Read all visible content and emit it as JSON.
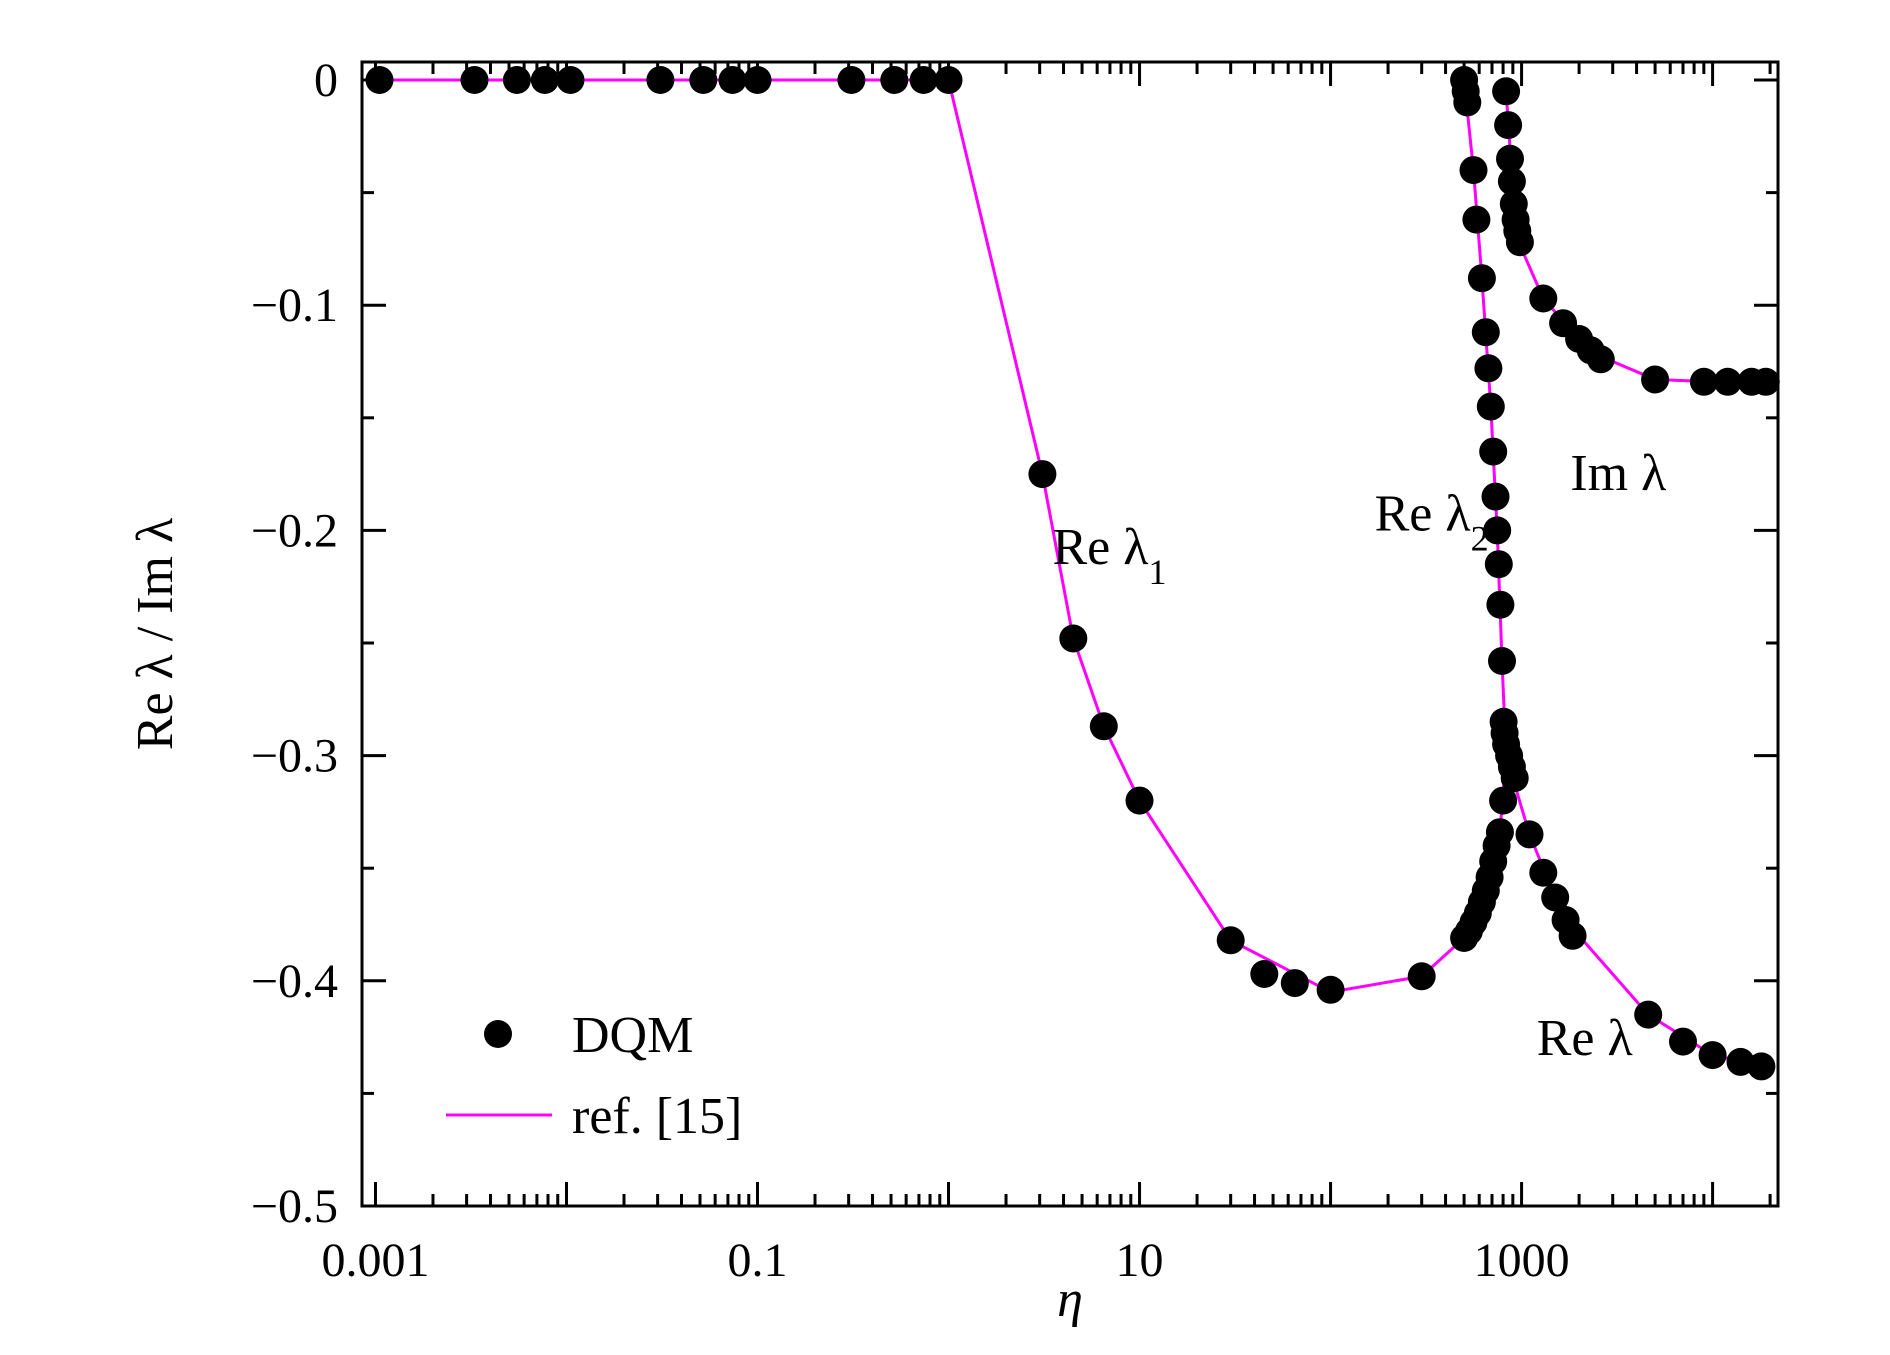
{
  "chart_data": {
    "type": "scatter",
    "xlabel": "η",
    "ylabel": "Re λ / Im λ",
    "x_scale": "log",
    "xlim": [
      0.00085,
      22000
    ],
    "ylim": [
      -0.5,
      0.008
    ],
    "x_ticks": [
      {
        "value": 0.001,
        "label": "0.001"
      },
      {
        "value": 0.1,
        "label": "0.1"
      },
      {
        "value": 10,
        "label": "10"
      },
      {
        "value": 1000,
        "label": "1000"
      }
    ],
    "y_ticks": [
      {
        "value": 0,
        "label": "0"
      },
      {
        "value": -0.1,
        "label": "−0.1"
      },
      {
        "value": -0.2,
        "label": "−0.2"
      },
      {
        "value": -0.3,
        "label": "−0.3"
      },
      {
        "value": -0.4,
        "label": "−0.4"
      },
      {
        "value": -0.5,
        "label": "−0.5"
      }
    ],
    "legend": {
      "position": "bottom-left",
      "entries": [
        {
          "name": "DQM",
          "marker": "circle"
        },
        {
          "name": "ref. [15]",
          "marker": "line"
        }
      ]
    },
    "annotations": [
      {
        "label": "Re λ",
        "sub": "1",
        "x": 3.5,
        "y": -0.215
      },
      {
        "label": "Re λ",
        "sub": "2",
        "x": 170,
        "y": -0.2
      },
      {
        "label": "Im λ",
        "sub": "",
        "x": 1800,
        "y": -0.182
      },
      {
        "label": "Re λ",
        "sub": "",
        "x": 1200,
        "y": -0.433
      }
    ],
    "series": [
      {
        "name": "DQM",
        "kind": "scatter",
        "color": "#000000",
        "points": [
          [
            0.00105,
            0
          ],
          [
            0.0033,
            0
          ],
          [
            0.0055,
            0
          ],
          [
            0.0077,
            0
          ],
          [
            0.0105,
            0
          ],
          [
            0.031,
            0
          ],
          [
            0.052,
            0
          ],
          [
            0.074,
            0
          ],
          [
            0.1,
            0
          ],
          [
            0.31,
            0
          ],
          [
            0.52,
            0
          ],
          [
            0.74,
            0
          ],
          [
            1.0,
            0
          ],
          [
            3.1,
            -0.175
          ],
          [
            4.5,
            -0.248
          ],
          [
            6.5,
            -0.287
          ],
          [
            10,
            -0.32
          ],
          [
            30,
            -0.382
          ],
          [
            45,
            -0.397
          ],
          [
            65,
            -0.401
          ],
          [
            100,
            -0.404
          ],
          [
            300,
            -0.398
          ],
          [
            500,
            -0.381
          ],
          [
            530,
            -0.378
          ],
          [
            560,
            -0.374
          ],
          [
            590,
            -0.37
          ],
          [
            620,
            -0.365
          ],
          [
            650,
            -0.36
          ],
          [
            680,
            -0.354
          ],
          [
            710,
            -0.347
          ],
          [
            740,
            -0.34
          ],
          [
            770,
            -0.334
          ],
          [
            800,
            -0.32
          ],
          [
            500,
            0
          ],
          [
            510,
            -0.005
          ],
          [
            520,
            -0.01
          ],
          [
            560,
            -0.04
          ],
          [
            580,
            -0.062
          ],
          [
            620,
            -0.088
          ],
          [
            650,
            -0.112
          ],
          [
            670,
            -0.128
          ],
          [
            690,
            -0.145
          ],
          [
            710,
            -0.165
          ],
          [
            730,
            -0.185
          ],
          [
            745,
            -0.2
          ],
          [
            760,
            -0.215
          ],
          [
            775,
            -0.233
          ],
          [
            790,
            -0.258
          ],
          [
            805,
            -0.285
          ],
          [
            815,
            -0.29
          ],
          [
            830,
            -0.295
          ],
          [
            860,
            -0.3
          ],
          [
            890,
            -0.305
          ],
          [
            920,
            -0.31
          ],
          [
            1100,
            -0.335
          ],
          [
            1300,
            -0.352
          ],
          [
            1500,
            -0.363
          ],
          [
            1700,
            -0.373
          ],
          [
            1850,
            -0.38
          ],
          [
            4600,
            -0.415
          ],
          [
            7000,
            -0.427
          ],
          [
            10000,
            -0.433
          ],
          [
            14000,
            -0.436
          ],
          [
            18000,
            -0.438
          ],
          [
            830,
            -0.005
          ],
          [
            850,
            -0.02
          ],
          [
            870,
            -0.035
          ],
          [
            890,
            -0.045
          ],
          [
            910,
            -0.055
          ],
          [
            930,
            -0.062
          ],
          [
            950,
            -0.067
          ],
          [
            980,
            -0.072
          ],
          [
            1300,
            -0.097
          ],
          [
            1650,
            -0.108
          ],
          [
            2000,
            -0.115
          ],
          [
            2300,
            -0.12
          ],
          [
            2600,
            -0.124
          ],
          [
            5000,
            -0.133
          ],
          [
            9000,
            -0.134
          ],
          [
            12000,
            -0.134
          ],
          [
            16000,
            -0.134
          ],
          [
            19000,
            -0.134
          ]
        ]
      },
      {
        "name": "ref. [15]",
        "kind": "line",
        "color": "#ff00ff",
        "segments": [
          [
            [
              0.001,
              0
            ],
            [
              0.3,
              0
            ],
            [
              1.0,
              0
            ],
            [
              3.1,
              -0.175
            ],
            [
              4.5,
              -0.248
            ],
            [
              6.5,
              -0.287
            ],
            [
              10,
              -0.32
            ],
            [
              30,
              -0.382
            ],
            [
              100,
              -0.405
            ],
            [
              300,
              -0.398
            ],
            [
              500,
              -0.381
            ],
            [
              650,
              -0.36
            ],
            [
              760,
              -0.34
            ],
            [
              830,
              -0.3
            ]
          ],
          [
            [
              500,
              0
            ],
            [
              560,
              -0.04
            ],
            [
              620,
              -0.088
            ],
            [
              690,
              -0.145
            ],
            [
              745,
              -0.2
            ],
            [
              790,
              -0.258
            ],
            [
              830,
              -0.3
            ]
          ],
          [
            [
              830,
              -0.3
            ],
            [
              1100,
              -0.335
            ],
            [
              1500,
              -0.363
            ],
            [
              2000,
              -0.38
            ],
            [
              4600,
              -0.415
            ],
            [
              10000,
              -0.433
            ],
            [
              19000,
              -0.438
            ]
          ],
          [
            [
              830,
              -0.005
            ],
            [
              910,
              -0.055
            ],
            [
              1000,
              -0.075
            ],
            [
              1300,
              -0.097
            ],
            [
              2000,
              -0.115
            ],
            [
              3000,
              -0.125
            ],
            [
              5000,
              -0.133
            ],
            [
              10000,
              -0.134
            ],
            [
              19000,
              -0.134
            ]
          ]
        ]
      }
    ]
  }
}
